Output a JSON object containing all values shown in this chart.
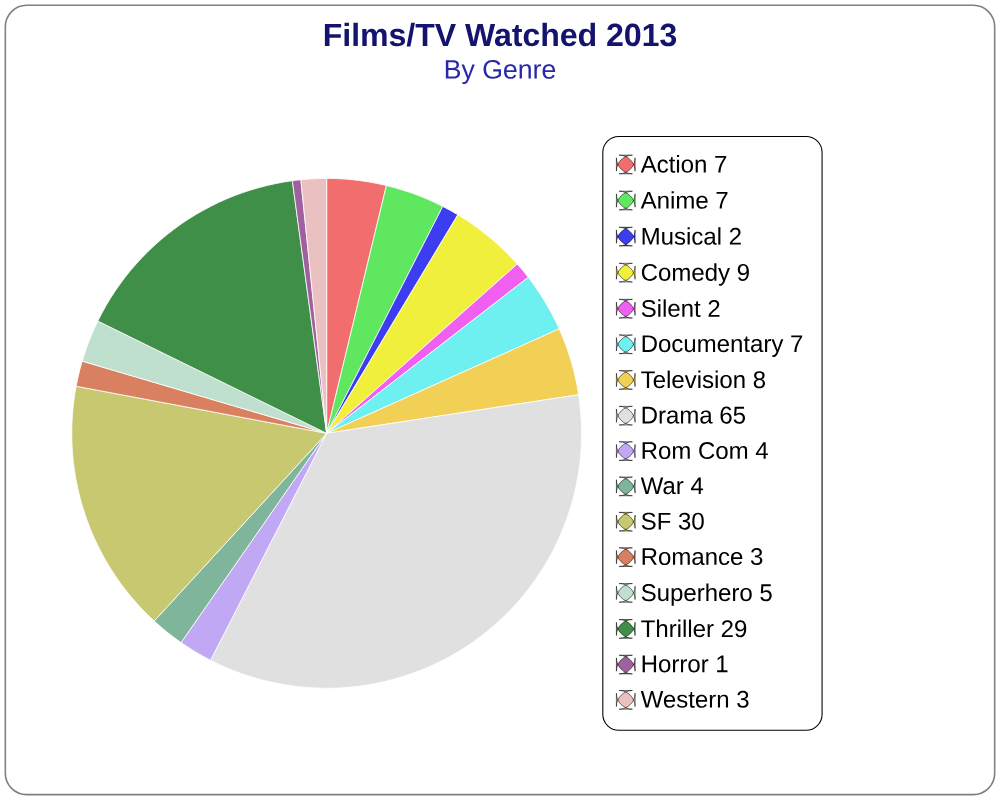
{
  "chart_data": {
    "type": "pie",
    "title": "Films/TV Watched 2013",
    "subtitle": "By Genre",
    "categories": [
      "Action 7",
      "Anime 7",
      "Musical 2",
      "Comedy 9",
      "Silent 2",
      "Documentary 7",
      "Television 8",
      "Drama 65",
      "Rom Com 4",
      "War 4",
      "SF 30",
      "Romance 3",
      "Superhero 5",
      "Thriller 29",
      "Horror 1",
      "Western 3"
    ],
    "values": [
      7,
      7,
      2,
      9,
      2,
      7,
      8,
      65,
      4,
      4,
      30,
      3,
      5,
      29,
      1,
      3
    ],
    "colors": [
      "#f26d6d",
      "#5fe85f",
      "#3c3cf0",
      "#f0f03c",
      "#f05ff0",
      "#6ff0f0",
      "#f2cf55",
      "#e0e0e0",
      "#c0a8f5",
      "#7fb59a",
      "#c8c870",
      "#d98060",
      "#bfe0cf",
      "#3f8f48",
      "#a060a0",
      "#eac0c0"
    ],
    "legend": "right"
  }
}
